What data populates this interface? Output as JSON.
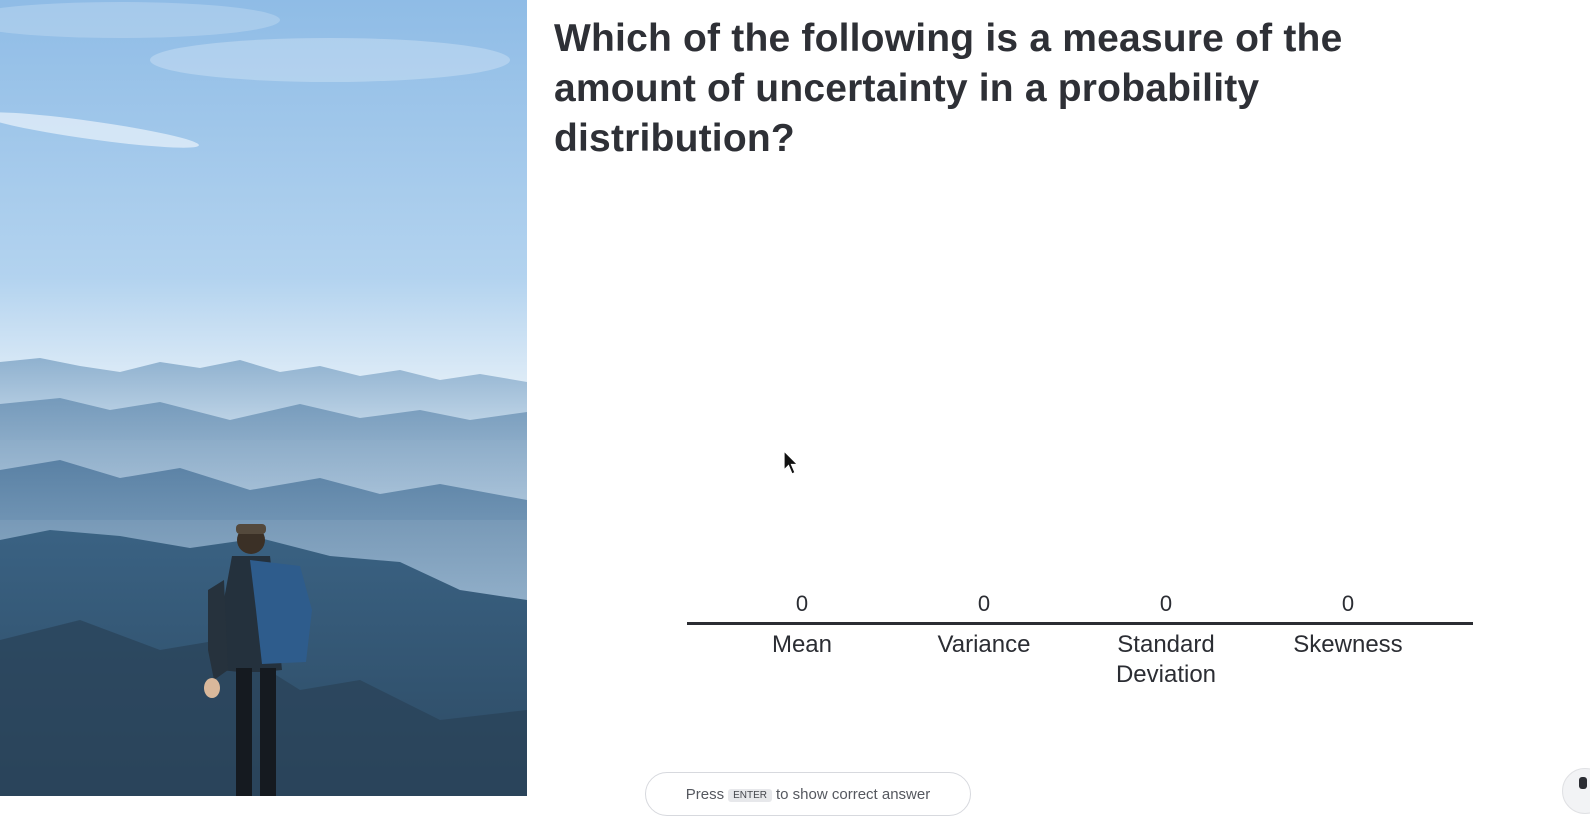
{
  "question": {
    "text": "Which of the following is a measure of the amount of uncertainty in a probability distribution?"
  },
  "hint": {
    "prefix": "Press",
    "key": "ENTER",
    "suffix": "to show correct answer"
  },
  "colors": {
    "sky_top": "#9cc5ea",
    "sky_bottom": "#e8f1f8",
    "mountain_dark": "#3f6789",
    "text": "#2b2d33"
  },
  "icons": {
    "cursor": "arrow-cursor-icon",
    "corner": "presenter-badge-icon"
  },
  "chart_data": {
    "type": "bar",
    "categories": [
      "Mean",
      "Variance",
      "Standard Deviation",
      "Skewness"
    ],
    "values": [
      0,
      0,
      0,
      0
    ],
    "title": "",
    "xlabel": "",
    "ylabel": "",
    "grid": false,
    "legend": "none"
  }
}
